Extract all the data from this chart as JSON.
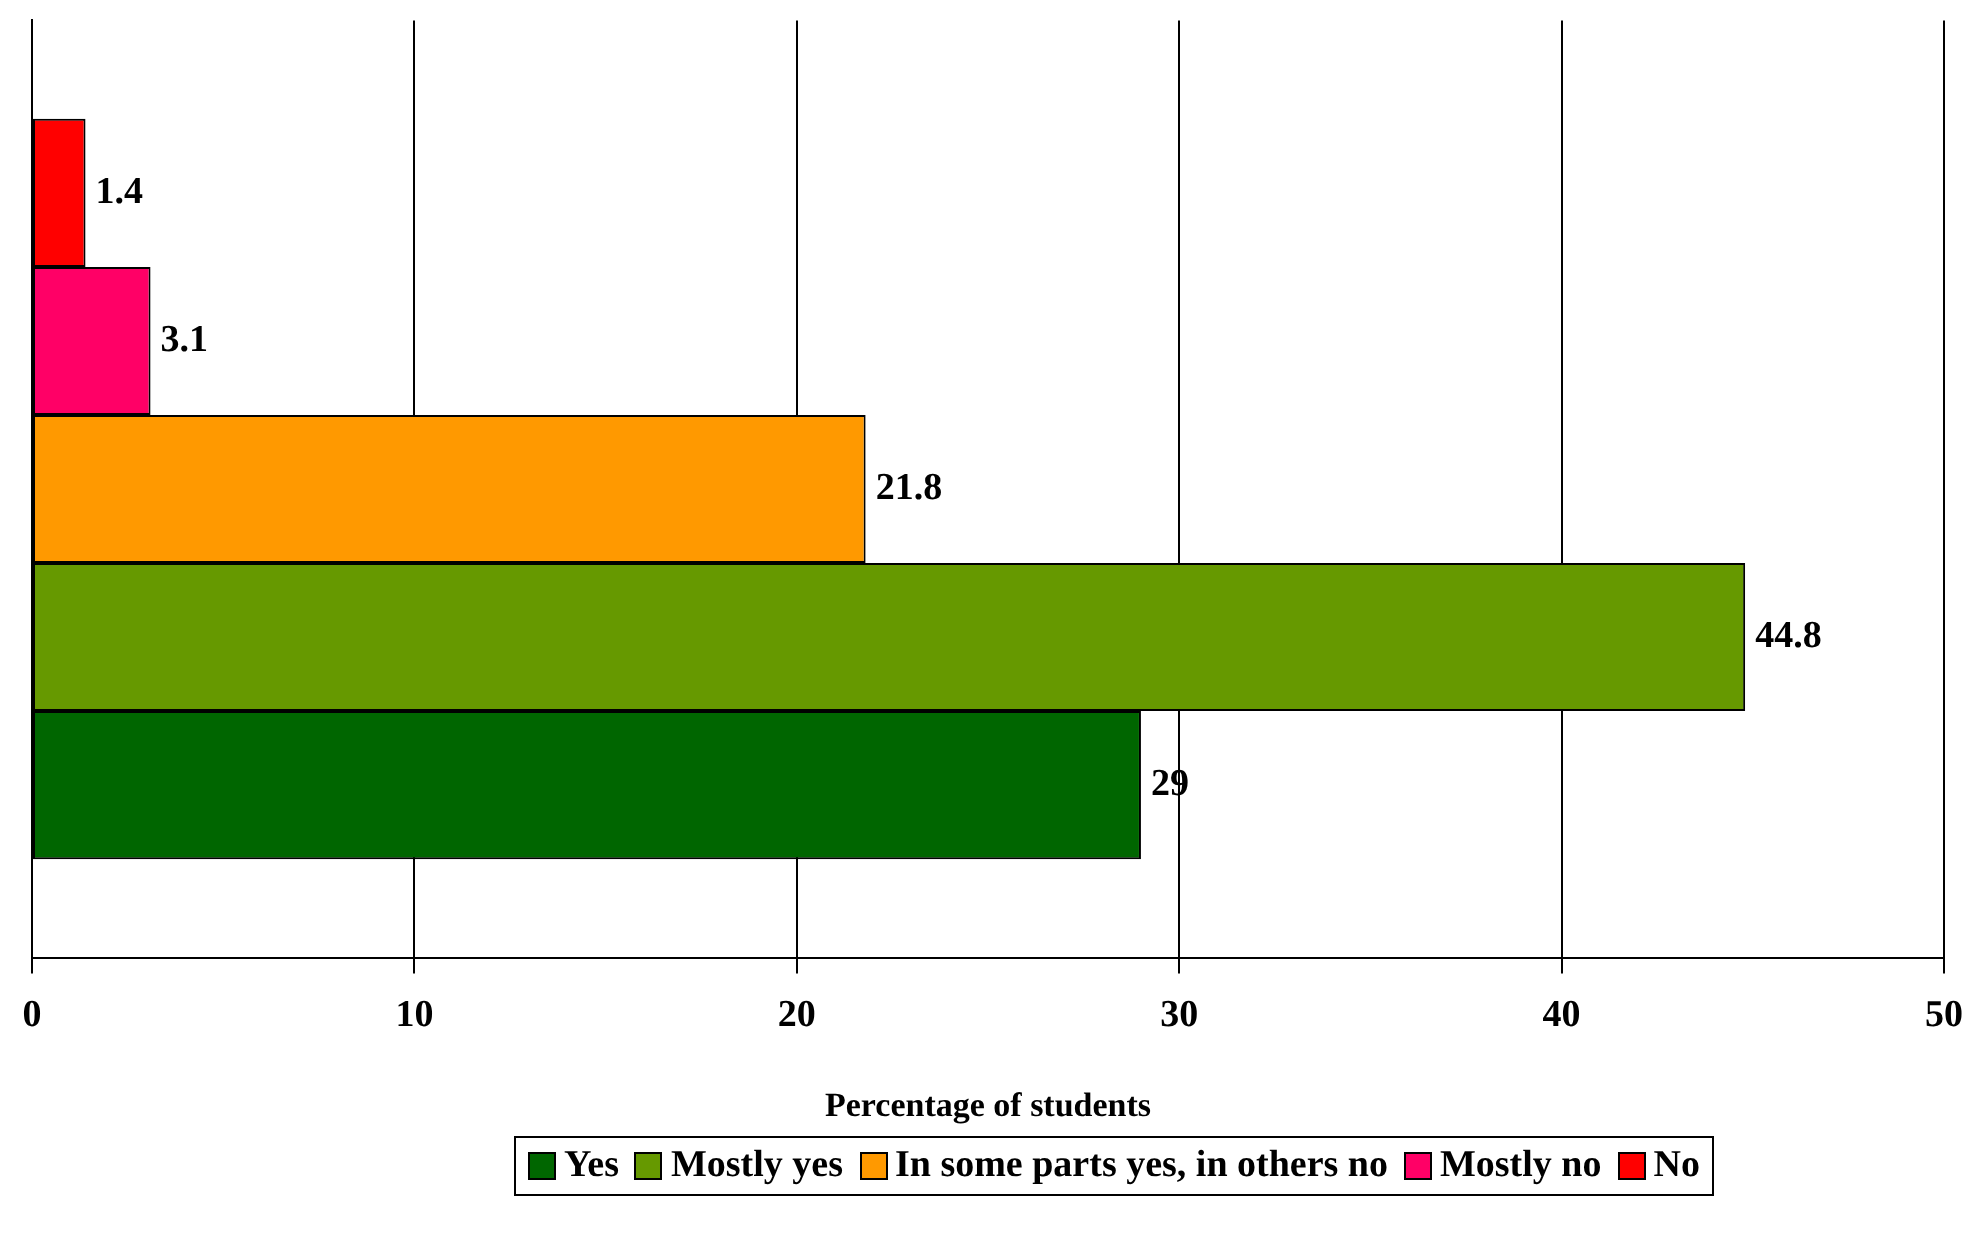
{
  "chart_data": {
    "type": "bar",
    "orientation": "horizontal",
    "xlabel": "Percentage of students",
    "categories": [
      null
    ],
    "series": [
      {
        "name": "Yes",
        "color": "#006600",
        "values": [
          29
        ]
      },
      {
        "name": "Mostly yes",
        "color": "#669900",
        "values": [
          44.8
        ]
      },
      {
        "name": "In some parts yes, in others no",
        "color": "#ff9900",
        "values": [
          21.8
        ]
      },
      {
        "name": "Mostly no",
        "color": "#ff0066",
        "values": [
          3.1
        ]
      },
      {
        "name": "No",
        "color": "#ff0000",
        "values": [
          1.4
        ]
      }
    ],
    "xlim": [
      0,
      50
    ],
    "xticks": [
      0,
      10,
      20,
      30,
      40,
      50
    ],
    "grid": "x",
    "legend": "bottom",
    "data_labels": true
  }
}
